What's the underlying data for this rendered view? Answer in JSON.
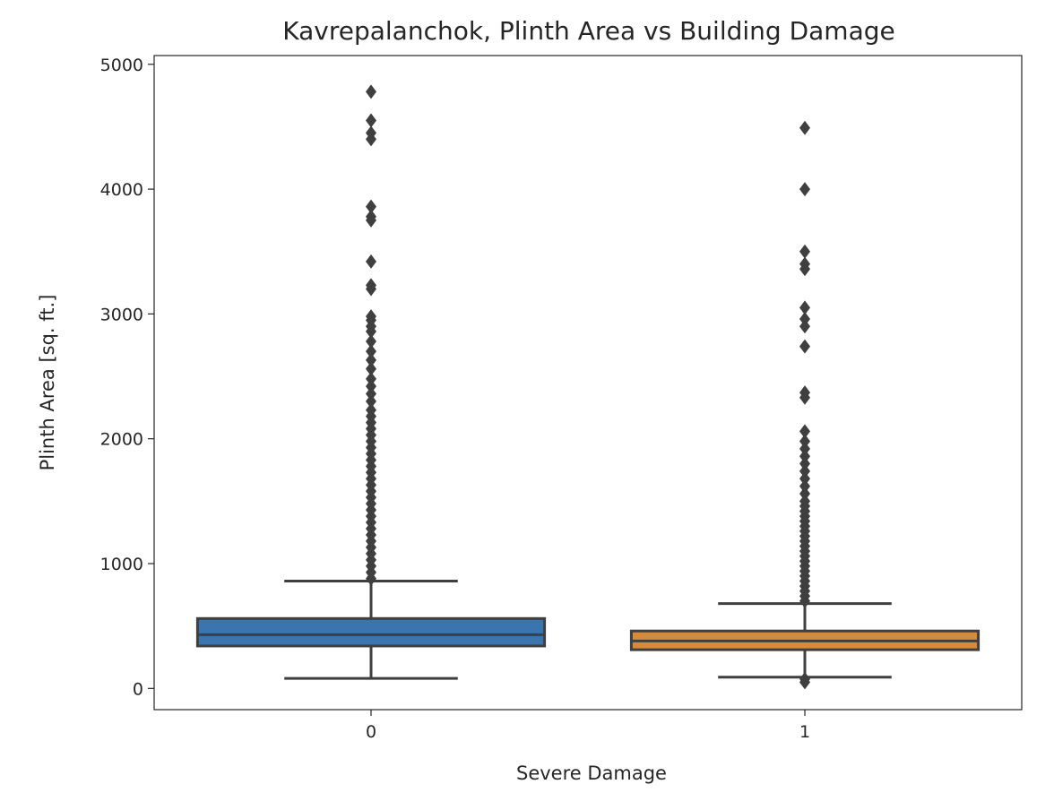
{
  "chart_data": {
    "type": "box",
    "title": "Kavrepalanchok, Plinth Area vs Building Damage",
    "xlabel": "Severe Damage",
    "ylabel": "Plinth Area [sq. ft.]",
    "ylim": [
      -170,
      5070
    ],
    "yticks": [
      0,
      1000,
      2000,
      3000,
      4000,
      5000
    ],
    "categories": [
      "0",
      "1"
    ],
    "grid": false,
    "legend": "none",
    "boxes": [
      {
        "category": "0",
        "color": "#3a75af",
        "whisker_low": 80,
        "q1": 340,
        "median": 430,
        "q3": 560,
        "whisker_high": 860,
        "outliers": [
          880,
          930,
          980,
          1030,
          1080,
          1130,
          1180,
          1230,
          1280,
          1330,
          1380,
          1430,
          1480,
          1530,
          1580,
          1630,
          1680,
          1730,
          1780,
          1830,
          1880,
          1930,
          1980,
          2030,
          2080,
          2130,
          2180,
          2230,
          2300,
          2360,
          2420,
          2480,
          2560,
          2630,
          2700,
          2780,
          2860,
          2900,
          2950,
          2980,
          3200,
          3230,
          3420,
          3750,
          3780,
          3860,
          4400,
          4450,
          4550,
          4780
        ]
      },
      {
        "category": "1",
        "color": "#d68a3a",
        "whisker_low": 90,
        "q1": 310,
        "median": 380,
        "q3": 460,
        "whisker_high": 680,
        "outliers": [
          50,
          75,
          700,
          740,
          780,
          820,
          860,
          900,
          940,
          980,
          1020,
          1060,
          1100,
          1140,
          1180,
          1220,
          1260,
          1300,
          1340,
          1380,
          1420,
          1460,
          1500,
          1560,
          1620,
          1680,
          1740,
          1800,
          1860,
          1920,
          1980,
          2060,
          2330,
          2370,
          2740,
          2900,
          2960,
          3050,
          3360,
          3400,
          3500,
          4000,
          4490
        ]
      }
    ]
  }
}
